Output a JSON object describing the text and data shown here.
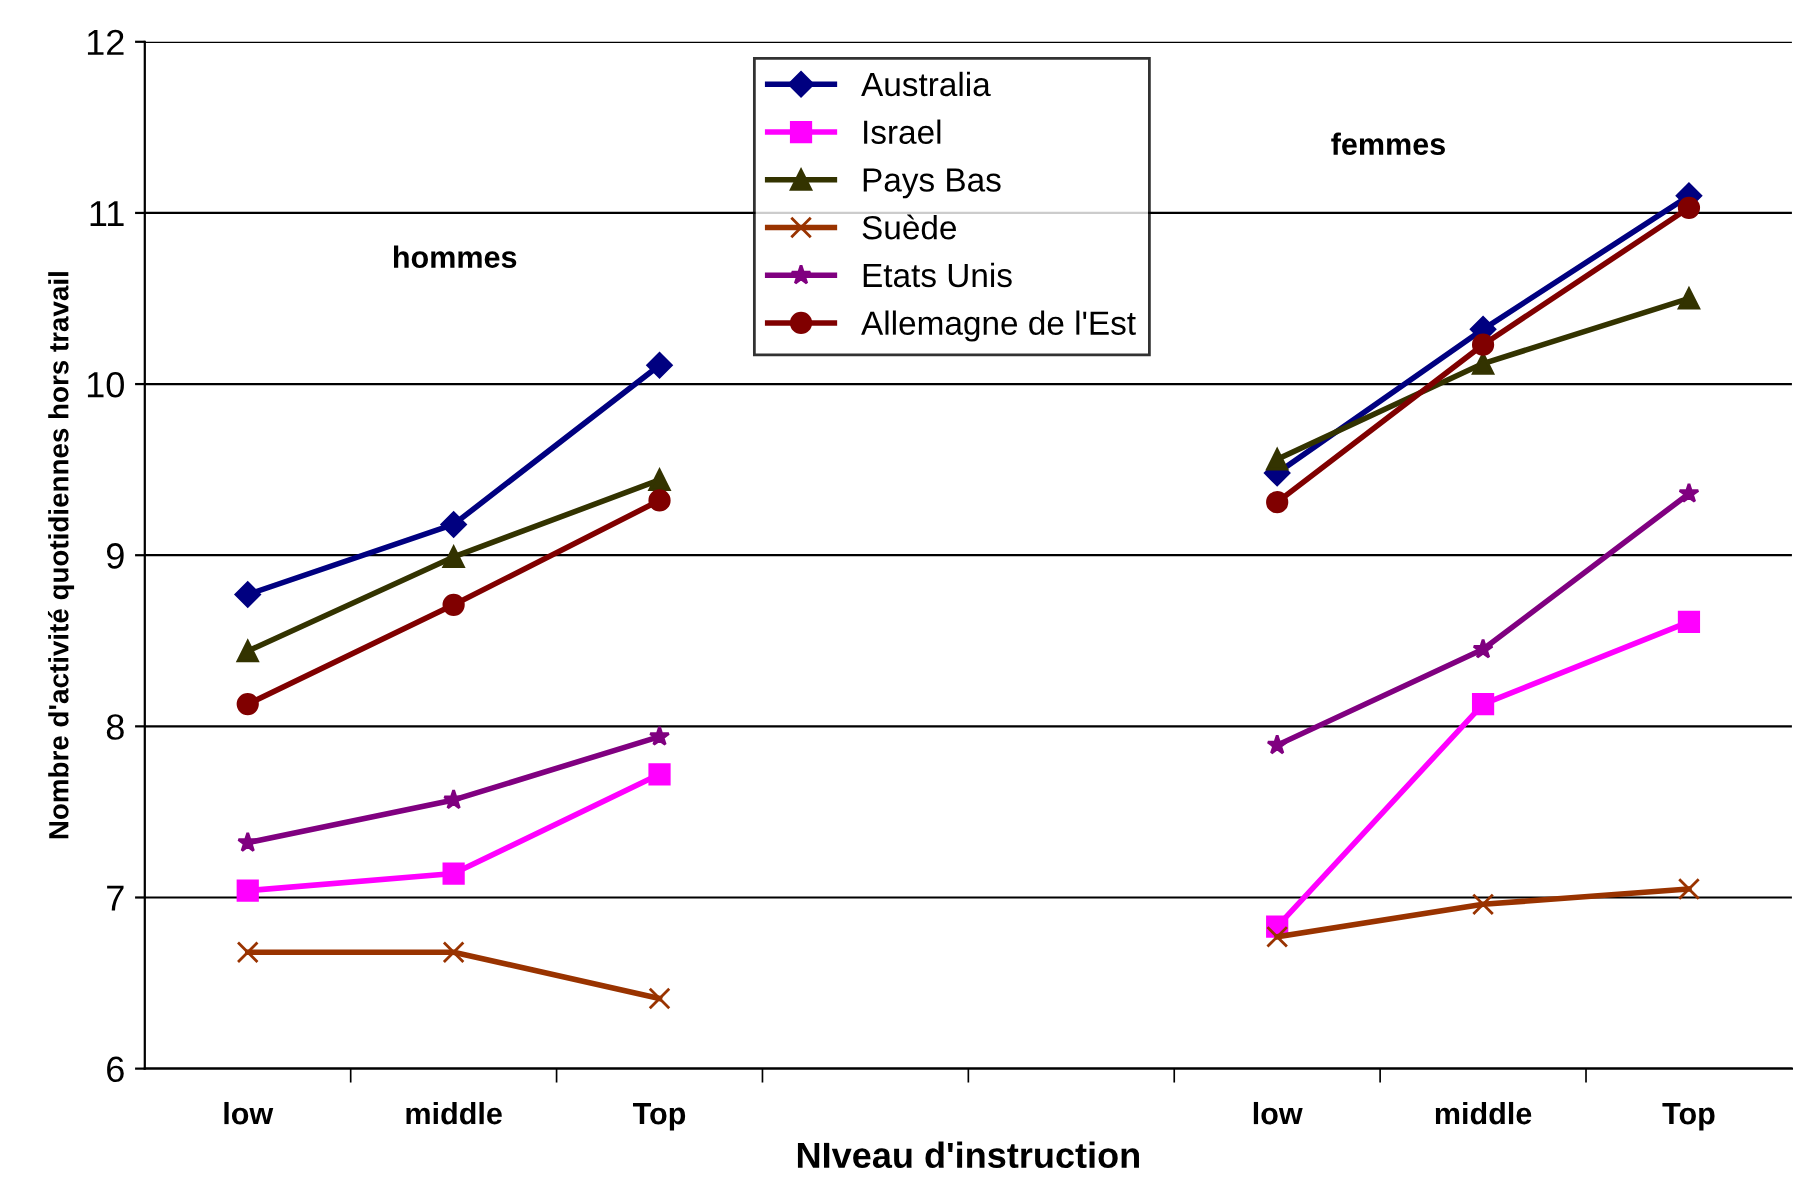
{
  "chart_data": {
    "type": "line",
    "xlabel": "NIveau d'instruction",
    "ylabel": "Nombre d'activité quotidiennes hors travail",
    "categories": [
      "low",
      "middle",
      "Top",
      null,
      null,
      "low",
      "middle",
      "Top"
    ],
    "series": [
      {
        "name": "Australia",
        "color": "#000080",
        "marker": "diamond",
        "values": [
          8.77,
          9.18,
          10.11,
          null,
          null,
          9.48,
          10.32,
          11.1
        ]
      },
      {
        "name": "Israel",
        "color": "#ff00ff",
        "marker": "square",
        "values": [
          7.04,
          7.14,
          7.72,
          null,
          null,
          6.83,
          8.13,
          8.61
        ]
      },
      {
        "name": "Pays Bas",
        "color": "#333300",
        "marker": "triangle",
        "values": [
          8.44,
          8.99,
          9.44,
          null,
          null,
          9.56,
          10.12,
          10.5
        ]
      },
      {
        "name": "Suède",
        "color": "#993300",
        "marker": "cross",
        "values": [
          6.68,
          6.68,
          6.41,
          null,
          null,
          6.77,
          6.96,
          7.05
        ]
      },
      {
        "name": "Etats Unis",
        "color": "#800080",
        "marker": "star",
        "values": [
          7.32,
          7.57,
          7.94,
          null,
          null,
          7.89,
          8.45,
          9.36
        ]
      },
      {
        "name": "Allemagne de l'Est",
        "color": "#800000",
        "marker": "circle",
        "values": [
          8.13,
          8.71,
          9.32,
          null,
          null,
          9.31,
          10.23,
          11.03
        ]
      }
    ],
    "annotations": [
      "hommes",
      "femmes"
    ],
    "ylim": [
      6,
      12
    ],
    "yticks": [
      6,
      7,
      8,
      9,
      10,
      11,
      12
    ],
    "grid": "y",
    "legend": "top",
    "line_style": "solid"
  }
}
